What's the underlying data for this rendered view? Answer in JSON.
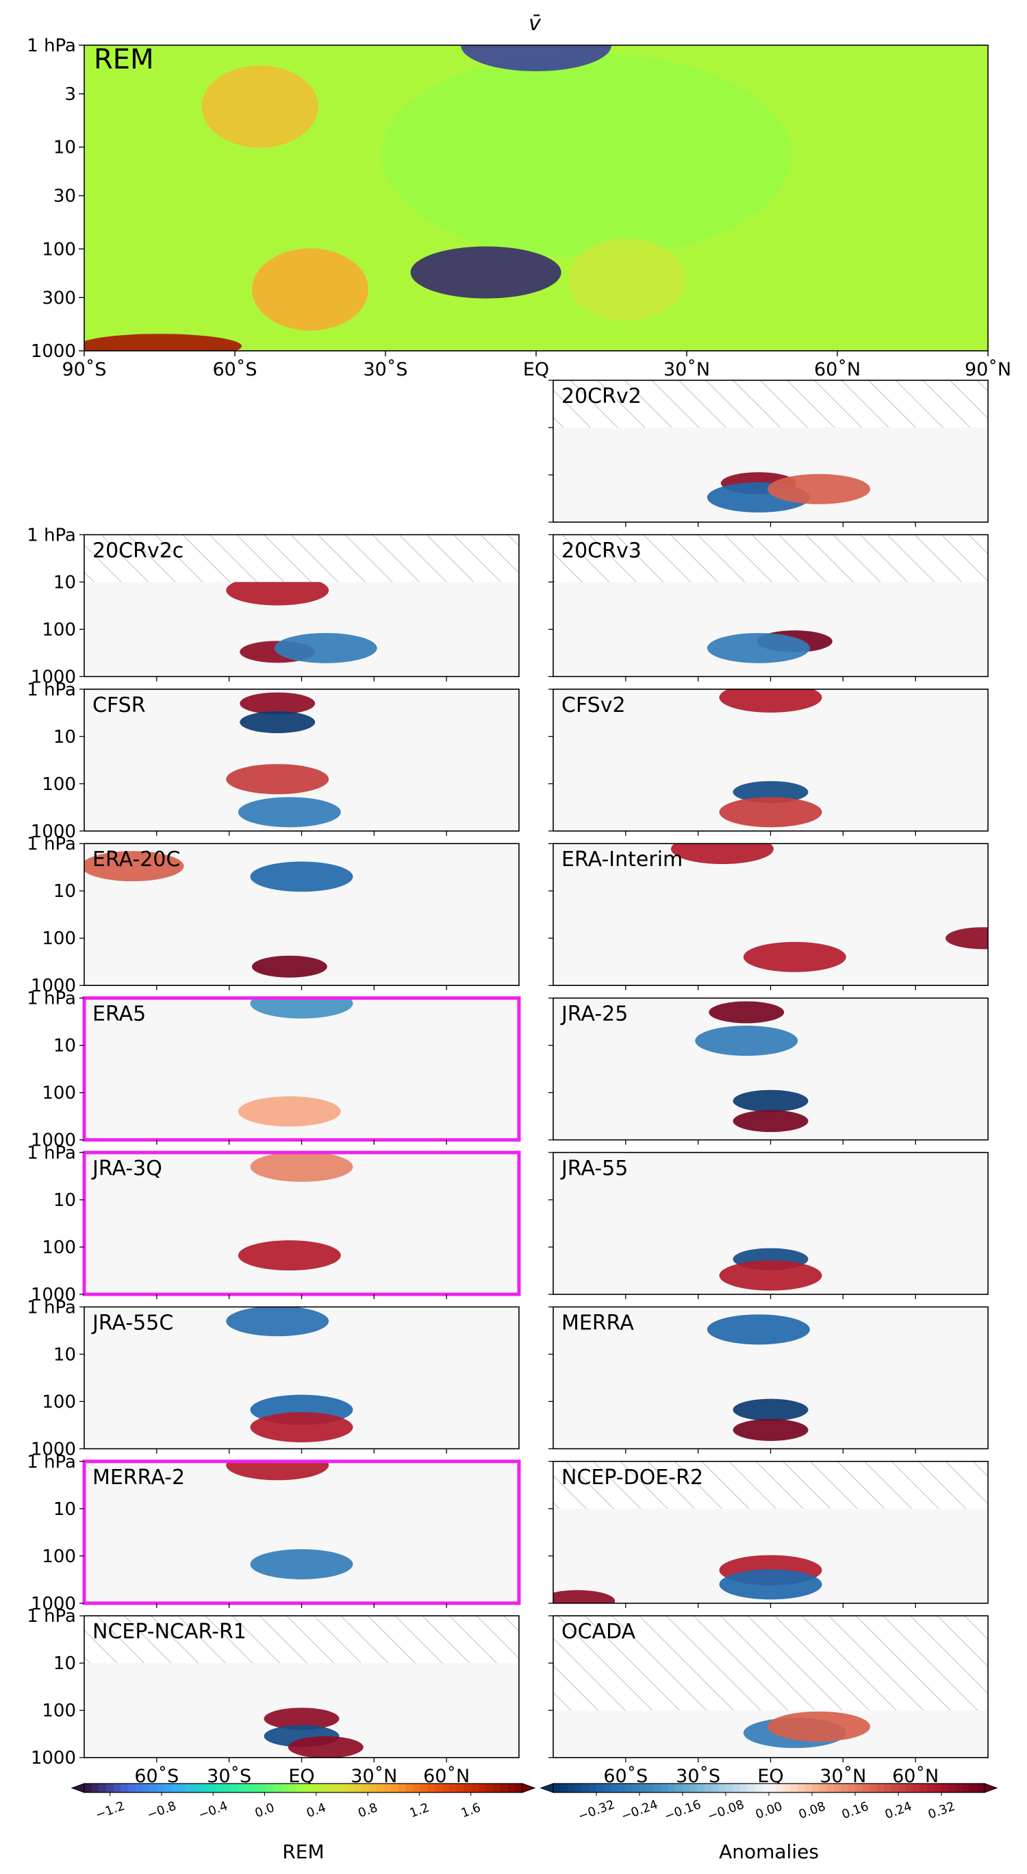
{
  "figure": {
    "title": "v̄",
    "hatch_note": ""
  },
  "chart_data": [
    {
      "type": "heatmap",
      "id": "rem",
      "title": "v̄",
      "panel_label": "REM",
      "panel_label_color": "#ee22ee",
      "x_ticks": [
        "90˚S",
        "60˚S",
        "30˚S",
        "EQ",
        "30˚N",
        "60˚N",
        "90˚N"
      ],
      "y_ticks": [
        "1 hPa",
        "3",
        "10",
        "30",
        "100",
        "300",
        "1000"
      ],
      "x_range": [
        "90˚S",
        "90˚N"
      ],
      "y_range_hPa": [
        1000,
        1
      ],
      "y_scale": "log",
      "colormap": "turbo",
      "features": [
        {
          "lat": -10,
          "p": 170,
          "value": -1.3,
          "desc": "strong negative core"
        },
        {
          "lat": -55,
          "p": 4,
          "value": 0.8
        },
        {
          "lat": -45,
          "p": 250,
          "value": 0.9
        },
        {
          "lat": 18,
          "p": 200,
          "value": 0.5
        },
        {
          "lat": -75,
          "p": 900,
          "value": 1.8
        },
        {
          "lat": 0,
          "p": 1,
          "value": -1.2
        }
      ]
    },
    {
      "type": "heatmap",
      "id": "anomaly-panels",
      "y_ticks": [
        "1 hPa",
        "10",
        "100",
        "1000"
      ],
      "x_ticks": [
        "60˚S",
        "30˚S",
        "EQ",
        "30˚N",
        "60˚N"
      ],
      "panels": [
        {
          "name": "20CRv2",
          "col": 1,
          "row": 0,
          "highlight": false,
          "hatch_top_hPa": 10,
          "features": [
            {
              "lat": -5,
              "p": 150,
              "v": 0.35
            },
            {
              "lat": -5,
              "p": 300,
              "v": -0.3
            },
            {
              "lat": 20,
              "p": 200,
              "v": 0.2
            }
          ]
        },
        {
          "name": "20CRv2c",
          "col": 0,
          "row": 1,
          "highlight": false,
          "hatch_top_hPa": 10,
          "features": [
            {
              "lat": -10,
              "p": 300,
              "v": 0.35
            },
            {
              "lat": 10,
              "p": 250,
              "v": -0.25
            },
            {
              "lat": -10,
              "p": 15,
              "v": 0.3
            }
          ]
        },
        {
          "name": "20CRv3",
          "col": 1,
          "row": 1,
          "highlight": false,
          "hatch_top_hPa": 10,
          "features": [
            {
              "lat": 10,
              "p": 180,
              "v": 0.38
            },
            {
              "lat": -5,
              "p": 250,
              "v": -0.25
            }
          ]
        },
        {
          "name": "CFSR",
          "col": 0,
          "row": 2,
          "highlight": false,
          "hatch_top_hPa": 0,
          "features": [
            {
              "lat": -10,
              "p": 2,
              "v": 0.35
            },
            {
              "lat": -10,
              "p": 5,
              "v": -0.38
            },
            {
              "lat": -10,
              "p": 80,
              "v": 0.25
            },
            {
              "lat": -5,
              "p": 400,
              "v": -0.25
            }
          ]
        },
        {
          "name": "CFSv2",
          "col": 1,
          "row": 2,
          "highlight": false,
          "hatch_top_hPa": 0,
          "features": [
            {
              "lat": 0,
              "p": 1.5,
              "v": 0.3
            },
            {
              "lat": 0,
              "p": 150,
              "v": -0.35
            },
            {
              "lat": 0,
              "p": 400,
              "v": 0.25
            }
          ]
        },
        {
          "name": "ERA-20C",
          "col": 0,
          "row": 3,
          "highlight": false,
          "hatch_top_hPa": 0,
          "features": [
            {
              "lat": 0,
              "p": 5,
              "v": -0.3
            },
            {
              "lat": -5,
              "p": 400,
              "v": 0.38
            },
            {
              "lat": -70,
              "p": 3,
              "v": 0.2
            }
          ]
        },
        {
          "name": "ERA-Interim",
          "col": 1,
          "row": 3,
          "highlight": false,
          "hatch_top_hPa": 0,
          "features": [
            {
              "lat": -20,
              "p": 1.3,
              "v": 0.3
            },
            {
              "lat": 10,
              "p": 250,
              "v": 0.3
            },
            {
              "lat": 88,
              "p": 100,
              "v": 0.35
            }
          ]
        },
        {
          "name": "ERA5",
          "col": 0,
          "row": 4,
          "highlight": true,
          "hatch_top_hPa": 0,
          "features": [
            {
              "lat": 0,
              "p": 1.3,
              "v": -0.2
            },
            {
              "lat": -5,
              "p": 250,
              "v": 0.1
            }
          ]
        },
        {
          "name": "JRA-25",
          "col": 1,
          "row": 4,
          "highlight": false,
          "hatch_top_hPa": 0,
          "features": [
            {
              "lat": -10,
              "p": 2,
              "v": 0.38
            },
            {
              "lat": -10,
              "p": 8,
              "v": -0.25
            },
            {
              "lat": 0,
              "p": 150,
              "v": -0.38
            },
            {
              "lat": 0,
              "p": 400,
              "v": 0.38
            }
          ]
        },
        {
          "name": "JRA-3Q",
          "col": 0,
          "row": 5,
          "highlight": true,
          "hatch_top_hPa": 0,
          "features": [
            {
              "lat": 0,
              "p": 2,
              "v": 0.15
            },
            {
              "lat": -5,
              "p": 150,
              "v": 0.3
            }
          ]
        },
        {
          "name": "JRA-55",
          "col": 1,
          "row": 5,
          "highlight": false,
          "hatch_top_hPa": 0,
          "features": [
            {
              "lat": 0,
              "p": 180,
              "v": -0.35
            },
            {
              "lat": 0,
              "p": 400,
              "v": 0.3
            }
          ]
        },
        {
          "name": "JRA-55C",
          "col": 0,
          "row": 6,
          "highlight": false,
          "hatch_top_hPa": 0,
          "features": [
            {
              "lat": -10,
              "p": 2,
              "v": -0.28
            },
            {
              "lat": 0,
              "p": 150,
              "v": -0.3
            },
            {
              "lat": 0,
              "p": 350,
              "v": 0.3
            }
          ]
        },
        {
          "name": "MERRA",
          "col": 1,
          "row": 6,
          "highlight": false,
          "hatch_top_hPa": 0,
          "features": [
            {
              "lat": -5,
              "p": 3,
              "v": -0.3
            },
            {
              "lat": 0,
              "p": 150,
              "v": -0.38
            },
            {
              "lat": 0,
              "p": 400,
              "v": 0.38
            }
          ]
        },
        {
          "name": "MERRA-2",
          "col": 0,
          "row": 7,
          "highlight": true,
          "hatch_top_hPa": 0,
          "features": [
            {
              "lat": -10,
              "p": 1.2,
              "v": 0.3
            },
            {
              "lat": 0,
              "p": 150,
              "v": -0.25
            }
          ]
        },
        {
          "name": "NCEP-DOE-R2",
          "col": 1,
          "row": 7,
          "highlight": false,
          "hatch_top_hPa": 10,
          "features": [
            {
              "lat": 0,
              "p": 200,
              "v": 0.3
            },
            {
              "lat": 0,
              "p": 400,
              "v": -0.3
            },
            {
              "lat": -80,
              "p": 900,
              "v": 0.35
            }
          ]
        },
        {
          "name": "NCEP-NCAR-R1",
          "col": 0,
          "row": 8,
          "highlight": false,
          "hatch_top_hPa": 10,
          "features": [
            {
              "lat": 0,
              "p": 150,
              "v": 0.35
            },
            {
              "lat": 0,
              "p": 350,
              "v": -0.35
            },
            {
              "lat": 10,
              "p": 600,
              "v": 0.35
            }
          ]
        },
        {
          "name": "OCADA",
          "col": 1,
          "row": 8,
          "highlight": false,
          "hatch_top_hPa": 100,
          "features": [
            {
              "lat": 10,
              "p": 300,
              "v": -0.25
            },
            {
              "lat": 20,
              "p": 220,
              "v": 0.2
            }
          ]
        }
      ]
    },
    {
      "type": "colorbar",
      "id": "rem-colorbar",
      "label": "REM",
      "colormap": "turbo",
      "ticks": [
        "−1.2",
        "−0.8",
        "−0.4",
        "0.0",
        "0.4",
        "0.8",
        "1.2",
        "1.6"
      ],
      "range": [
        -1.4,
        2.0
      ]
    },
    {
      "type": "colorbar",
      "id": "anomaly-colorbar",
      "label": "Anomalies",
      "colormap": "RdBu_r",
      "ticks": [
        "−0.32",
        "−0.24",
        "−0.16",
        "−0.08",
        "0.00",
        "0.08",
        "0.16",
        "0.24",
        "0.32"
      ],
      "range": [
        -0.4,
        0.4
      ]
    }
  ]
}
